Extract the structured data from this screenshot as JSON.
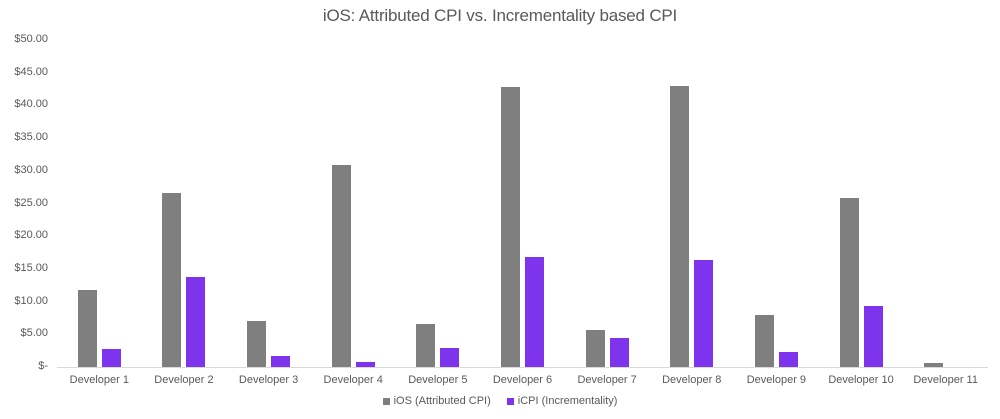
{
  "chart_data": {
    "type": "bar",
    "title": "iOS: Attributed CPI vs. Incrementality based CPI",
    "xlabel": "",
    "ylabel": "",
    "ylim": [
      0,
      50
    ],
    "yticks": [
      "$-",
      "$5.00",
      "$10.00",
      "$15.00",
      "$20.00",
      "$25.00",
      "$30.00",
      "$35.00",
      "$40.00",
      "$45.00",
      "$50.00"
    ],
    "grid": false,
    "legend_position": "bottom",
    "categories": [
      "Developer 1",
      "Developer 2",
      "Developer 3",
      "Developer 4",
      "Developer 5",
      "Developer 6",
      "Developer 7",
      "Developer 8",
      "Developer 9",
      "Developer 10",
      "Developer 11"
    ],
    "series": [
      {
        "name": "iOS (Attributed CPI)",
        "color": "#7f7f7f",
        "values": [
          11.8,
          26.6,
          7.1,
          30.9,
          6.6,
          42.8,
          5.6,
          43.0,
          8.0,
          25.8,
          0.65
        ]
      },
      {
        "name": "iCPI (Incrementality)",
        "color": "#7e33ec",
        "values": [
          2.75,
          13.8,
          1.75,
          0.75,
          2.85,
          16.8,
          4.5,
          16.4,
          2.25,
          9.3,
          0.05
        ]
      }
    ]
  }
}
